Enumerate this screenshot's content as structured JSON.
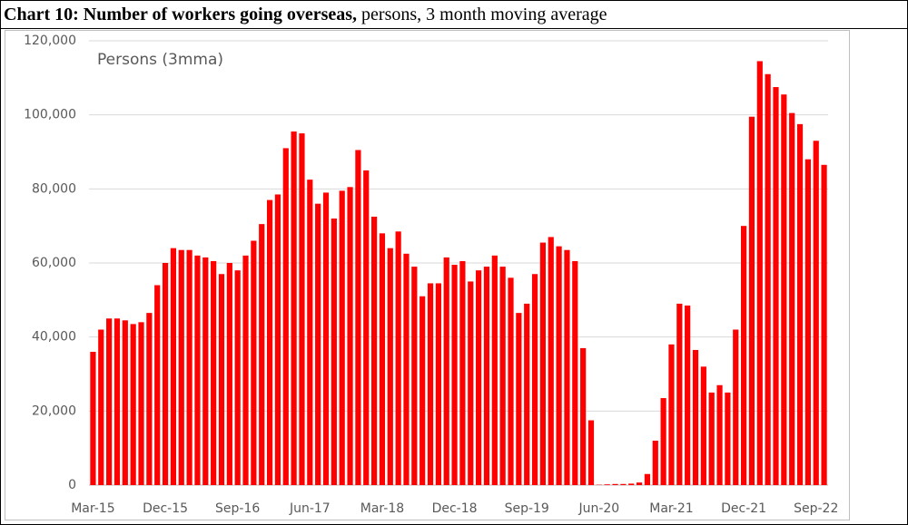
{
  "chart_data": {
    "type": "bar",
    "title": "Chart 10: Number of workers going overseas,",
    "subtitle": "persons, 3 month moving average",
    "annotation": "Persons (3mma)",
    "color": "#ff0000",
    "categories": [
      "Mar-15",
      null,
      null,
      null,
      null,
      null,
      null,
      null,
      null,
      "Dec-15",
      null,
      null,
      null,
      null,
      null,
      null,
      null,
      null,
      "Sep-16",
      null,
      null,
      null,
      null,
      null,
      null,
      null,
      null,
      "Jun-17",
      null,
      null,
      null,
      null,
      null,
      null,
      null,
      null,
      "Mar-18",
      null,
      null,
      null,
      null,
      null,
      null,
      null,
      null,
      "Dec-18",
      null,
      null,
      null,
      null,
      null,
      null,
      null,
      null,
      "Sep-19",
      null,
      null,
      null,
      null,
      null,
      null,
      null,
      null,
      "Jun-20",
      null,
      null,
      null,
      null,
      null,
      null,
      null,
      null,
      "Mar-21",
      null,
      null,
      null,
      null,
      null,
      null,
      null,
      null,
      "Dec-21",
      null,
      null,
      null,
      null,
      null,
      null,
      null,
      null,
      "Sep-22",
      null
    ],
    "values": [
      36000,
      42000,
      45000,
      45000,
      44500,
      43500,
      44000,
      46500,
      54000,
      60000,
      64000,
      63500,
      63500,
      62000,
      61500,
      60500,
      57000,
      60000,
      58000,
      62000,
      66000,
      70500,
      77000,
      78500,
      91000,
      95500,
      95000,
      82500,
      76000,
      79000,
      72000,
      79500,
      80500,
      90500,
      85000,
      72500,
      68000,
      64000,
      68500,
      62500,
      59000,
      51000,
      54500,
      54500,
      61500,
      59500,
      60500,
      55000,
      58000,
      59000,
      62000,
      59000,
      56000,
      46500,
      49000,
      57000,
      65500,
      67000,
      64500,
      63500,
      60500,
      37000,
      17500,
      100,
      200,
      300,
      300,
      400,
      700,
      3000,
      12000,
      23500,
      38000,
      49000,
      48500,
      36500,
      32000,
      25000,
      27000,
      25000,
      42000,
      70000,
      99500,
      114500,
      111000,
      107500,
      105500,
      100500,
      97500,
      88000,
      93000,
      86500
    ],
    "ylim": [
      0,
      120000
    ],
    "yticks": [
      0,
      {
        "value": 20000,
        "label": "20,000"
      },
      {
        "value": 40000,
        "label": "40,000"
      },
      {
        "value": 60000,
        "label": "60,000"
      },
      {
        "value": 80000,
        "label": "80,000"
      },
      {
        "value": 100000,
        "label": "100,000"
      },
      {
        "value": 120000,
        "label": "120,000"
      }
    ],
    "grid": true
  }
}
